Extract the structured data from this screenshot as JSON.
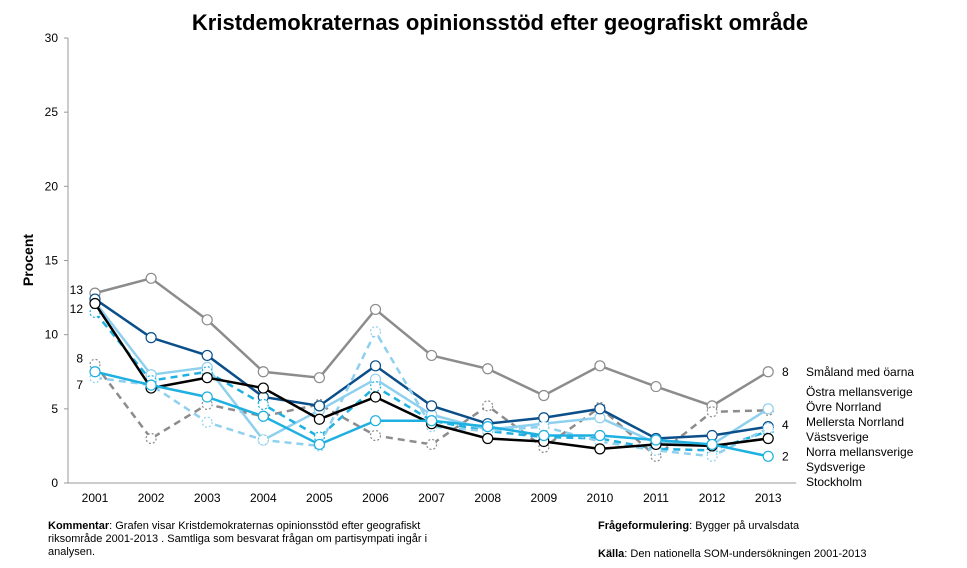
{
  "chart_data": {
    "type": "line",
    "title": "Kristdemokraternas opinionsstöd efter geografiskt område",
    "xlabel": "",
    "ylabel": "Procent",
    "ylim": [
      0,
      30
    ],
    "yticks": [
      0,
      5,
      10,
      15,
      20,
      25,
      30
    ],
    "categories": [
      "2001",
      "2002",
      "2003",
      "2004",
      "2005",
      "2006",
      "2007",
      "2008",
      "2009",
      "2010",
      "2011",
      "2012",
      "2013"
    ],
    "start_labels": [
      {
        "text": "13",
        "value": 13
      },
      {
        "text": "12",
        "value": 12
      },
      {
        "text": "8",
        "value": 8
      },
      {
        "text": "7",
        "value": 7
      }
    ],
    "end_value_labels": [
      {
        "text": "8",
        "value": 7.5
      },
      {
        "text": "4",
        "value": 3.9
      },
      {
        "text": "2",
        "value": 1.8
      }
    ],
    "series": [
      {
        "name": "Småland med öarna",
        "color": "#8c8c8c",
        "dash": false,
        "values": [
          12.8,
          13.8,
          11.0,
          7.5,
          7.1,
          11.7,
          8.6,
          7.7,
          5.9,
          7.9,
          6.5,
          5.2,
          7.5
        ]
      },
      {
        "name": "Östra mellansverige",
        "color": "#8c8c8c",
        "dash": true,
        "values": [
          8.0,
          3.0,
          5.3,
          4.5,
          5.3,
          3.2,
          2.6,
          5.2,
          2.4,
          5.1,
          1.8,
          4.8,
          4.9
        ]
      },
      {
        "name": "Övre Norrland",
        "color": "#8fd0ee",
        "dash": false,
        "values": [
          12.2,
          7.3,
          7.8,
          2.9,
          4.9,
          7.0,
          4.6,
          3.6,
          4.0,
          4.4,
          2.7,
          2.6,
          5.0
        ]
      },
      {
        "name": "Mellersta Norrland",
        "color": "#0a4f8a",
        "dash": false,
        "values": [
          12.4,
          9.8,
          8.6,
          5.8,
          5.2,
          7.9,
          5.2,
          4.0,
          4.4,
          5.0,
          3.0,
          3.2,
          3.8
        ]
      },
      {
        "name": "Västsverige",
        "color": "#1eb0e0",
        "dash": true,
        "values": [
          11.5,
          6.9,
          7.5,
          5.3,
          3.1,
          6.5,
          4.2,
          3.5,
          3.1,
          3.0,
          2.3,
          2.2,
          3.5
        ]
      },
      {
        "name": "Norra mellansverige",
        "color": "#8fd0ee",
        "dash": true,
        "values": [
          7.1,
          6.6,
          4.1,
          2.9,
          2.5,
          10.2,
          3.8,
          3.5,
          3.8,
          2.8,
          2.2,
          1.8,
          3.7
        ]
      },
      {
        "name": "Sydsverige",
        "color": "#000000",
        "dash": false,
        "values": [
          12.1,
          6.4,
          7.1,
          6.4,
          4.3,
          5.8,
          4.0,
          3.0,
          2.8,
          2.3,
          2.6,
          2.5,
          3.0
        ]
      },
      {
        "name": "Stockholm",
        "color": "#1eb0e0",
        "dash": false,
        "values": [
          7.5,
          6.6,
          5.8,
          4.5,
          2.6,
          4.2,
          4.2,
          3.8,
          3.2,
          3.2,
          2.9,
          2.6,
          1.8
        ]
      }
    ],
    "legend_placement": "right (end of lines)",
    "grid": false
  },
  "footer": {
    "kommentar_label": "Kommentar",
    "kommentar_text": ": Grafen visar Kristdemokraternas opinionsstöd efter geografiskt riksområde 2001-2013 . Samtliga som besvarat frågan om partisympati ingår i analysen.",
    "fraga_label": "Frågeformulering",
    "fraga_text": ": Bygger på urvalsdata",
    "kalla_label": "Källa",
    "kalla_text": ": Den nationella SOM-undersökningen 2001-2013"
  }
}
